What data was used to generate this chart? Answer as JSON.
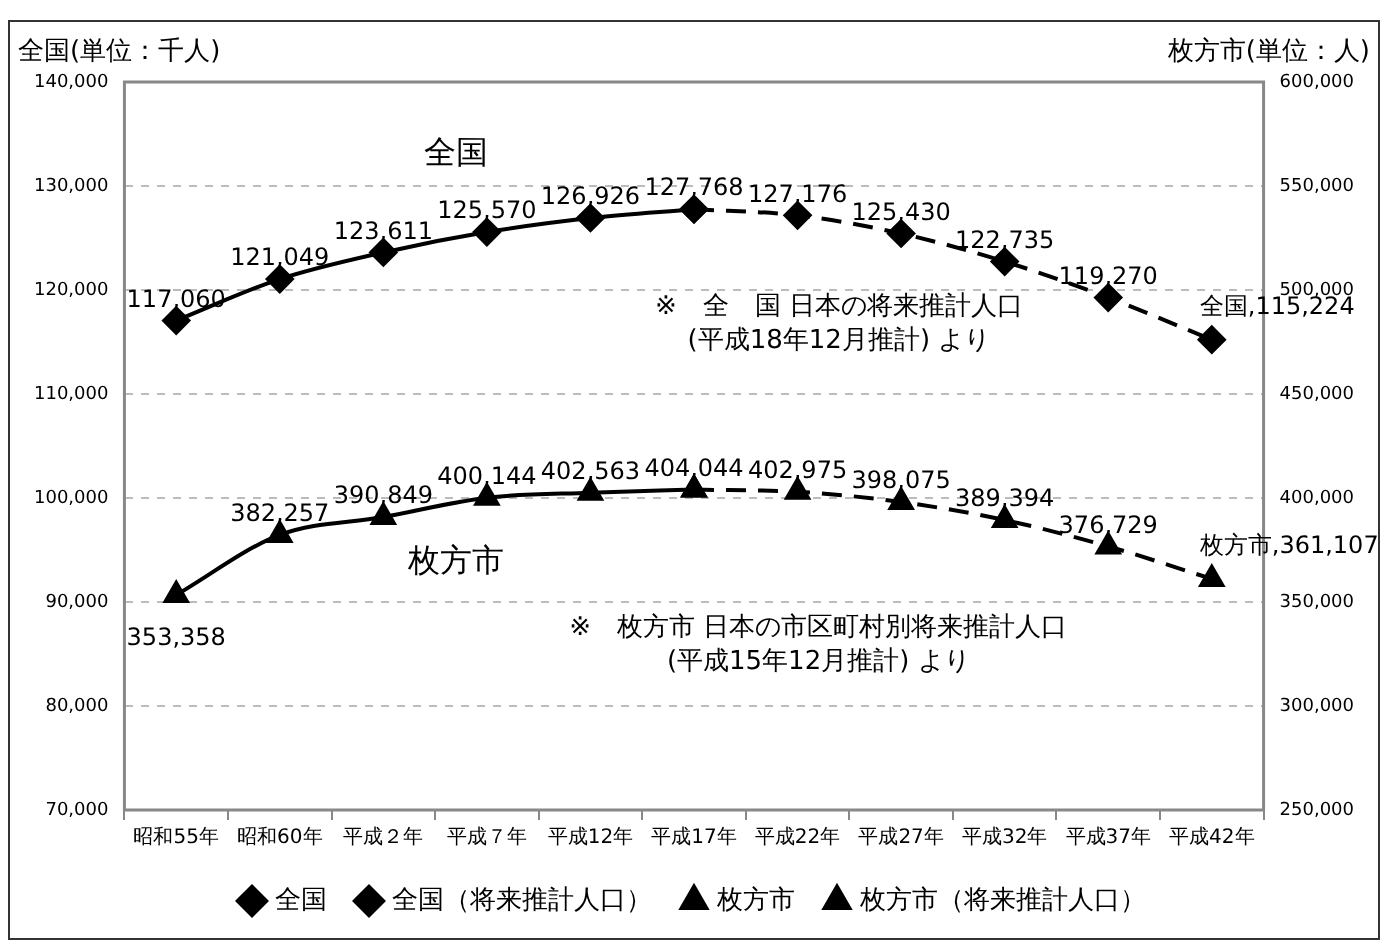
{
  "chart_data": {
    "type": "line",
    "ylabel": "全国(単位：千人)",
    "y2label": "枚方市(単位：人)",
    "categories": [
      "昭和55年",
      "昭和60年",
      "平成２年",
      "平成７年",
      "平成12年",
      "平成17年",
      "平成22年",
      "平成27年",
      "平成32年",
      "平成37年",
      "平成42年"
    ],
    "series": [
      {
        "name": "全国",
        "color": "#000000",
        "marker": "diamond",
        "line_style": "solid",
        "values": [
          117060,
          121049,
          123611,
          125570,
          126926,
          127768,
          null,
          null,
          null,
          null,
          null
        ],
        "value_labels": [
          "117,060",
          "121,049",
          "123,611",
          "125,570",
          "126,926",
          "127,768",
          null,
          null,
          null,
          null,
          null
        ]
      },
      {
        "name": "全国（将来推計人口）",
        "color": "#000000",
        "marker": "diamond",
        "line_style": "dashed",
        "values": [
          null,
          null,
          null,
          null,
          null,
          127768,
          127176,
          125430,
          122735,
          119270,
          115224
        ],
        "value_labels": [
          null,
          null,
          null,
          null,
          null,
          null,
          "127,176",
          "125,430",
          "122,735",
          "119,270",
          "全国,115,224"
        ]
      },
      {
        "name": "枚方市",
        "color": "#000000",
        "marker": "triangle",
        "line_style": "solid",
        "axis": "y2",
        "values": [
          353358,
          382257,
          390849,
          400144,
          402563,
          404044,
          null,
          null,
          null,
          null,
          null
        ],
        "value_labels": [
          "353,358",
          "382,257",
          "390,849",
          "400,144",
          "402,563",
          "404,044",
          null,
          null,
          null,
          null,
          null
        ]
      },
      {
        "name": "枚方市（将来推計人口）",
        "color": "#000000",
        "marker": "triangle",
        "line_style": "dashed",
        "axis": "y2",
        "values": [
          null,
          null,
          null,
          null,
          null,
          404044,
          402975,
          398075,
          389394,
          376729,
          361107
        ],
        "value_labels": [
          null,
          null,
          null,
          null,
          null,
          null,
          "402,975",
          "398,075",
          "389,394",
          "376,729",
          "枚方市,361,107"
        ]
      }
    ],
    "ylim": [
      70000,
      140000
    ],
    "yticks": [
      {
        "value": 70000,
        "label": "70,000"
      },
      {
        "value": 80000,
        "label": "80,000"
      },
      {
        "value": 90000,
        "label": "90,000"
      },
      {
        "value": 100000,
        "label": "100,000"
      },
      {
        "value": 110000,
        "label": "110,000"
      },
      {
        "value": 120000,
        "label": "120,000"
      },
      {
        "value": 130000,
        "label": "130,000"
      },
      {
        "value": 140000,
        "label": "140,000"
      }
    ],
    "y2lim": [
      250000,
      600000
    ],
    "y2ticks": [
      {
        "value": 250000,
        "label": "250,000"
      },
      {
        "value": 300000,
        "label": "300,000"
      },
      {
        "value": 350000,
        "label": "350,000"
      },
      {
        "value": 400000,
        "label": "400,000"
      },
      {
        "value": 450000,
        "label": "450,000"
      },
      {
        "value": 500000,
        "label": "500,000"
      },
      {
        "value": 550000,
        "label": "550,000"
      },
      {
        "value": 600000,
        "label": "600,000"
      }
    ],
    "grid": "y",
    "legend": "bottom",
    "annotations": [
      "全国",
      "枚方市",
      "※　全　国 日本の将来推計人口\n(平成18年12月推計) より",
      "※　枚方市 日本の市区町村別将来推計人口\n(平成15年12月推計) より"
    ]
  }
}
